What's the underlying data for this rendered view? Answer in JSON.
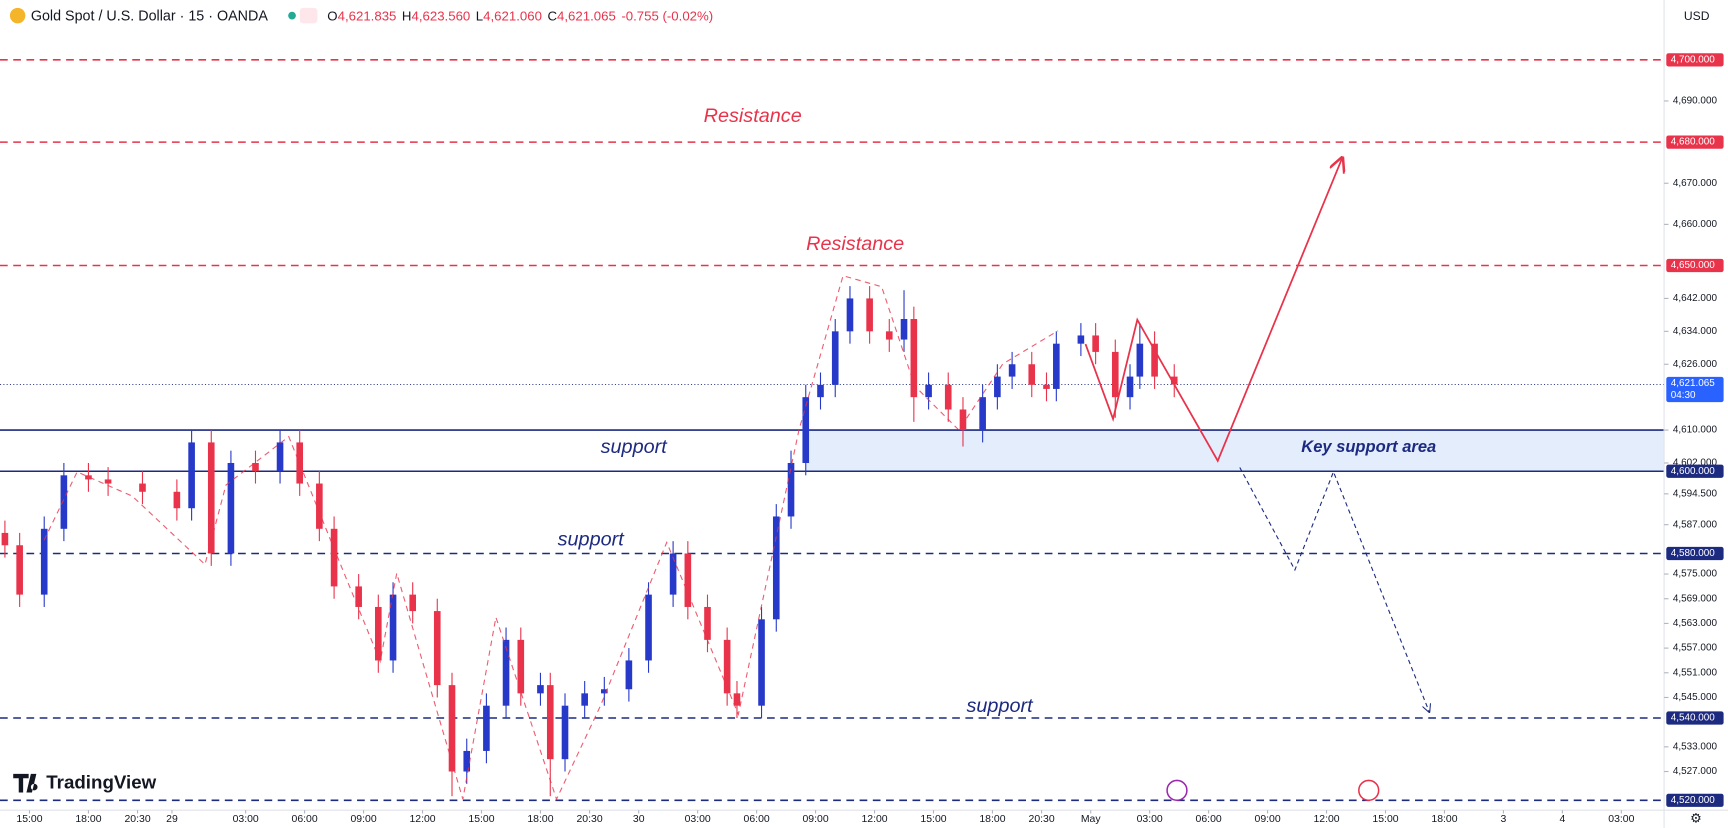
{
  "header": {
    "title": "Gold Spot / U.S. Dollar · 15 · OANDA",
    "open_label": "O",
    "open": "4,621.835",
    "high_label": "H",
    "high": "4,623.560",
    "low_label": "L",
    "low": "4,621.060",
    "close_label": "C",
    "close": "4,621.065",
    "change": "-0.755 (-0.02%)",
    "currency": "USD",
    "brand": "TradingView"
  },
  "chart_data": {
    "type": "candlestick",
    "up_color": "#2639c9",
    "down_color": "#e8334b",
    "x": [
      -5,
      -2,
      3,
      7,
      12,
      16,
      23,
      30,
      33,
      37,
      41,
      46,
      51,
      55,
      59,
      62,
      67,
      71,
      74,
      78,
      83,
      86,
      89,
      93,
      97,
      100,
      104,
      106,
      109,
      113,
      117,
      122,
      126,
      131,
      134,
      138,
      142,
      144,
      149,
      152,
      155,
      158,
      161,
      164,
      167,
      171,
      175,
      178,
      180,
      183,
      187,
      190,
      194,
      197,
      200,
      204,
      207,
      209,
      214,
      217,
      221,
      224,
      226,
      229,
      233
    ],
    "open": [
      4585,
      4582,
      4570,
      4586,
      4599,
      4598,
      4597,
      4595,
      4591,
      4607,
      4580,
      4602,
      4600,
      4607,
      4597,
      4586,
      4572,
      4567,
      4554,
      4570,
      4566,
      4548,
      4527,
      4532,
      4543,
      4559,
      4546,
      4548,
      4530,
      4543,
      4546,
      4547,
      4554,
      4570,
      4580,
      4567,
      4559,
      4546,
      4543,
      4564,
      4589,
      4602,
      4618,
      4621,
      4634,
      4642,
      4634,
      4632,
      4637,
      4618,
      4621,
      4615,
      4610,
      4618,
      4623,
      4626,
      4621,
      4620,
      4631,
      4633,
      4629,
      4618,
      4623,
      4631,
      4623
    ],
    "high": [
      4588,
      4585,
      4589,
      4602,
      4602,
      4601,
      4600,
      4598,
      4610,
      4610,
      4605,
      4605,
      4610,
      4610,
      4600,
      4589,
      4575,
      4570,
      4573,
      4573,
      4569,
      4551,
      4535,
      4546,
      4562,
      4562,
      4551,
      4551,
      4546,
      4549,
      4550,
      4557,
      4573,
      4583,
      4583,
      4570,
      4562,
      4549,
      4567,
      4592,
      4605,
      4621,
      4624,
      4637,
      4645,
      4645,
      4637,
      4644,
      4640,
      4624,
      4624,
      4618,
      4621,
      4626,
      4629,
      4629,
      4624,
      4634,
      4636,
      4636,
      4632,
      4626,
      4636,
      4634,
      4626
    ],
    "low": [
      4579,
      4567,
      4567,
      4583,
      4595,
      4594,
      4592,
      4588,
      4588,
      4577,
      4577,
      4597,
      4597,
      4594,
      4583,
      4569,
      4564,
      4551,
      4551,
      4563,
      4545,
      4521,
      4524,
      4529,
      4540,
      4543,
      4543,
      4521,
      4527,
      4540,
      4543,
      4544,
      4551,
      4567,
      4564,
      4556,
      4543,
      4540,
      4540,
      4561,
      4586,
      4599,
      4615,
      4618,
      4631,
      4631,
      4629,
      4629,
      4612,
      4615,
      4612,
      4606,
      4607,
      4615,
      4620,
      4618,
      4617,
      4617,
      4628,
      4626,
      4613,
      4615,
      4620,
      4620,
      4618
    ],
    "close": [
      4582,
      4570,
      4586,
      4599,
      4598,
      4597,
      4595,
      4591,
      4607,
      4580,
      4602,
      4600,
      4607,
      4597,
      4586,
      4572,
      4567,
      4554,
      4570,
      4566,
      4548,
      4527,
      4532,
      4543,
      4559,
      4546,
      4548,
      4530,
      4543,
      4546,
      4547,
      4554,
      4570,
      4580,
      4567,
      4559,
      4546,
      4543,
      4564,
      4589,
      4602,
      4618,
      4621,
      4634,
      4642,
      4634,
      4632,
      4637,
      4618,
      4621,
      4615,
      4610,
      4618,
      4623,
      4626,
      4621,
      4620,
      4631,
      4633,
      4629,
      4618,
      4623,
      4631,
      4623,
      4621.065
    ],
    "xlim": [
      -6,
      332.7
    ],
    "ylim": [
      4517.6,
      4714.5
    ],
    "xticks": [
      {
        "value": 0,
        "label": "15:00"
      },
      {
        "value": 12,
        "label": "18:00"
      },
      {
        "value": 22,
        "label": "20:30"
      },
      29,
      {
        "value": 44,
        "label": "03:00"
      },
      {
        "value": 56,
        "label": "06:00"
      },
      {
        "value": 68,
        "label": "09:00"
      },
      {
        "value": 80,
        "label": "12:00"
      },
      {
        "value": 92,
        "label": "15:00"
      },
      {
        "value": 104,
        "label": "18:00"
      },
      {
        "value": 114,
        "label": "20:30"
      },
      {
        "value": 124,
        "label": "30"
      },
      {
        "value": 136,
        "label": "03:00"
      },
      {
        "value": 148,
        "label": "06:00"
      },
      {
        "value": 160,
        "label": "09:00"
      },
      {
        "value": 172,
        "label": "12:00"
      },
      {
        "value": 184,
        "label": "15:00"
      },
      {
        "value": 196,
        "label": "18:00"
      },
      {
        "value": 206,
        "label": "20:30"
      },
      {
        "value": 216,
        "label": "May"
      },
      {
        "value": 228,
        "label": "03:00"
      },
      {
        "value": 240,
        "label": "06:00"
      },
      {
        "value": 252,
        "label": "09:00"
      },
      {
        "value": 264,
        "label": "12:00"
      },
      {
        "value": 276,
        "label": "15:00"
      },
      {
        "value": 288,
        "label": "18:00"
      },
      {
        "value": 300,
        "label": "3"
      },
      {
        "value": 312,
        "label": "4"
      },
      {
        "value": 324,
        "label": "03:00"
      }
    ],
    "yticks": [
      {
        "value": 4690,
        "label": "4,690.000"
      },
      {
        "value": 4670,
        "label": "4,670.000"
      },
      {
        "value": 4660,
        "label": "4,660.000"
      },
      {
        "value": 4642,
        "label": "4,642.000"
      },
      {
        "value": 4634,
        "label": "4,634.000"
      },
      {
        "value": 4626,
        "label": "4,626.000"
      },
      {
        "value": 4610,
        "label": "4,610.000"
      },
      {
        "value": 4602,
        "label": "4,602.000"
      },
      {
        "value": 4594.5,
        "label": "4,594.500"
      },
      {
        "value": 4587,
        "label": "4,587.000"
      },
      {
        "value": 4575,
        "label": "4,575.000"
      },
      {
        "value": 4569,
        "label": "4,569.000"
      },
      {
        "value": 4563,
        "label": "4,563.000"
      },
      {
        "value": 4557,
        "label": "4,557.000"
      },
      {
        "value": 4551,
        "label": "4,551.000"
      },
      {
        "value": 4545,
        "label": "4,545.000"
      },
      {
        "value": 4533,
        "label": "4,533.000"
      },
      {
        "value": 4527,
        "label": "4,527.000"
      }
    ],
    "levels": [
      {
        "value": 4700,
        "label": "4,700.000",
        "color": "#e8334b",
        "style": "dashed"
      },
      {
        "value": 4680,
        "label": "4,680.000",
        "color": "#e8334b",
        "style": "dashed"
      },
      {
        "value": 4650,
        "label": "4,650.000",
        "color": "#e8334b",
        "style": "dashed"
      },
      {
        "value": 4610,
        "color": "#1c2a80",
        "style": "solid"
      },
      {
        "value": 4600,
        "label": "4,600.000",
        "color": "#1c2a80",
        "style": "solid"
      },
      {
        "value": 4580,
        "label": "4,580.000",
        "color": "#1c2a80",
        "style": "dashed"
      },
      {
        "value": 4540,
        "label": "4,540.000",
        "color": "#1c2a80",
        "style": "dashed"
      },
      {
        "value": 4520,
        "label": "4,520.000",
        "color": "#1c2a80",
        "style": "dashed"
      }
    ],
    "zone": {
      "low": 4600,
      "high": 4610,
      "x_start": 158,
      "color": "#e3edfc"
    },
    "last_price": {
      "value": 4621.065,
      "label": "4,621.065",
      "countdown": "04:30",
      "color": "#2962ff"
    },
    "annotations": [
      {
        "text": "Resistance",
        "color": "#e8334b"
      },
      {
        "text": "Resistance",
        "color": "#e8334b"
      },
      {
        "text": "support",
        "color": "#1c2a80"
      },
      {
        "text": "Key support area",
        "color": "#1c2a80"
      },
      {
        "text": "support",
        "color": "#1c2a80"
      },
      {
        "text": "support",
        "color": "#1c2a80"
      }
    ]
  }
}
